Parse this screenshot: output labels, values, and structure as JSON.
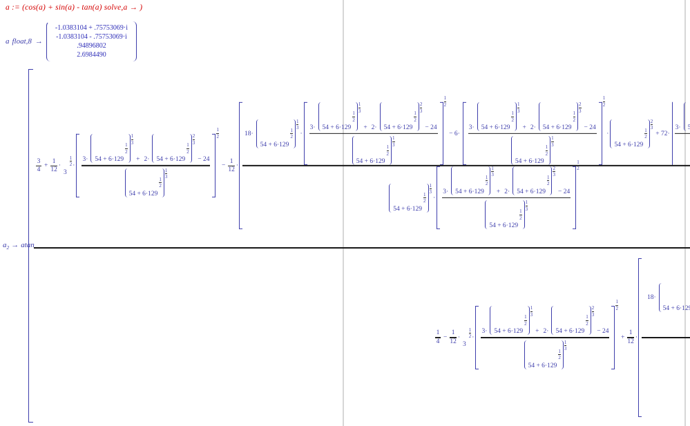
{
  "colors": {
    "math": "#3d3dab",
    "accent_red": "#d40000",
    "bar": "#181818",
    "pagebreak": "#d6d6d6",
    "values": "#2e2eb8"
  },
  "solve_line": {
    "text": "a := (cos(a) + sin(a) - tan(a) solve,a  →  )"
  },
  "float_line": {
    "var": "a",
    "keyword": "float",
    "arg": ",8",
    "arrow": "→",
    "values": [
      "-1.0383104 + .75753069·i",
      "-1.0383104 - .75753069·i",
      ".94896802",
      "2.6984490"
    ]
  },
  "result": {
    "var": "a",
    "sub": "2",
    "arrow": "→",
    "fn": "atan"
  },
  "tok": {
    "base": "54 + 6·129",
    "n1": "1",
    "n2": "2",
    "n3": "3",
    "d2": "2",
    "d3": "3",
    "d4": "4",
    "d12": "12",
    "three": "3",
    "c3": "3·",
    "c2": "2·",
    "m24": "− 24",
    "plus": "+",
    "minus": "−",
    "dot": "·",
    "c18": "18·",
    "m6": "− 6·",
    "p72": "+ 72·"
  }
}
